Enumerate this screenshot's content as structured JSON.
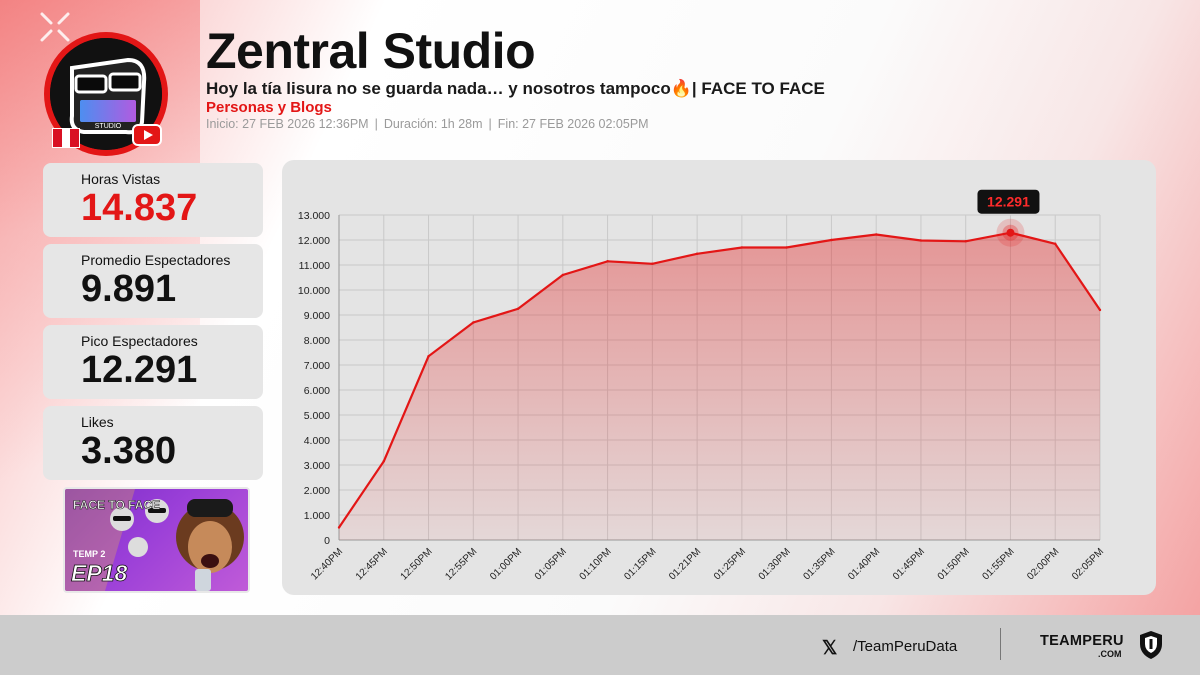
{
  "header": {
    "channel_name": "Zentral Studio",
    "stream_title": "Hoy la tía lisura no se guarda nada… y nosotros tampoco🔥| FACE TO FACE",
    "category": "Personas y Blogs",
    "meta": {
      "start": "Inicio: 27 FEB 2026 12:36PM",
      "duration": "Duración: 1h 28m",
      "end": "Fin: 27 FEB 2026 02:05PM",
      "separator": "|"
    }
  },
  "stats": [
    {
      "label": "Horas Vistas",
      "value": "14.837",
      "highlight": true
    },
    {
      "label": "Promedio Espectadores",
      "value": "9.891",
      "highlight": false
    },
    {
      "label": "Pico Espectadores",
      "value": "12.291",
      "highlight": false
    },
    {
      "label": "Likes",
      "value": "3.380",
      "highlight": false
    }
  ],
  "thumbnail": {
    "text_face": "FACE TO FACE",
    "text_temp": "TEMP 2",
    "text_ep": "EP18"
  },
  "chart_data": {
    "type": "area",
    "categories": [
      "12:40PM",
      "12:45PM",
      "12:50PM",
      "12:55PM",
      "01:00PM",
      "01:05PM",
      "01:10PM",
      "01:15PM",
      "01:21PM",
      "01:25PM",
      "01:30PM",
      "01:35PM",
      "01:40PM",
      "01:45PM",
      "01:50PM",
      "01:55PM",
      "02:00PM",
      "02:05PM"
    ],
    "values": [
      500,
      3150,
      7350,
      8700,
      9250,
      10600,
      11150,
      11050,
      11450,
      11700,
      11700,
      12000,
      12220,
      11980,
      11950,
      12291,
      11850,
      9200
    ],
    "ylim": [
      0,
      13000
    ],
    "yticks": [
      "0",
      "1.000",
      "2.000",
      "3.000",
      "4.000",
      "5.000",
      "6.000",
      "7.000",
      "8.000",
      "9.000",
      "10.000",
      "11.000",
      "12.000",
      "13.000"
    ],
    "peak_label": "12.291",
    "peak_index": 15,
    "grid": true,
    "color": "#e31616"
  },
  "footer": {
    "x_icon": "x-logo-icon",
    "x_glyph": "𝕏",
    "handle": "/TeamPeruData",
    "brand": "TEAMPERU",
    "brand_sub": ".COM"
  },
  "colors": {
    "accent": "#e31616",
    "card_bg": "#e6e6e6",
    "chart_bg": "#e4e4e4"
  }
}
